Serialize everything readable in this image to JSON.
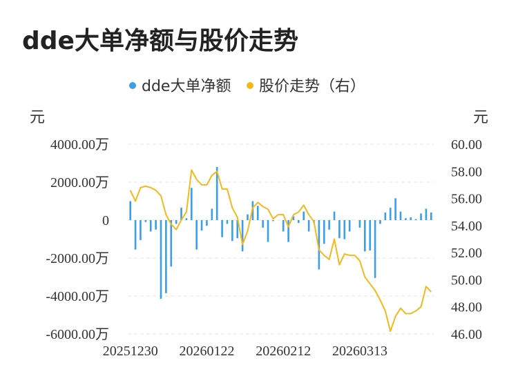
{
  "page": {
    "title": "dde大单净额与股价走势"
  },
  "chart_data": {
    "type": "bar+line",
    "legend": {
      "placement": "top-center",
      "items": [
        {
          "name": "dde大单净额",
          "color": "#3a9ee8"
        },
        {
          "name": "股价走势（右）",
          "color": "#f4b81d"
        }
      ]
    },
    "y_left": {
      "unit": "元",
      "range": [
        -6000,
        4000
      ],
      "ticks": [
        4000,
        2000,
        0,
        -2000,
        -4000,
        -6000
      ],
      "tick_labels": [
        "4000.00万",
        "2000.00万",
        "0",
        "-2000.00万",
        "-4000.00万",
        "-6000.00万"
      ]
    },
    "y_right": {
      "unit": "元",
      "range": [
        46,
        60
      ],
      "ticks": [
        60,
        58,
        56,
        54,
        52,
        50,
        48,
        46
      ],
      "tick_labels": [
        "60.00",
        "58.00",
        "56.00",
        "54.00",
        "52.00",
        "50.00",
        "48.00",
        "46.00"
      ]
    },
    "x_labels": [
      {
        "index": 0,
        "label": "20251230"
      },
      {
        "index": 15,
        "label": "20260122"
      },
      {
        "index": 30,
        "label": "20260212"
      },
      {
        "index": 45,
        "label": "20260313"
      }
    ],
    "grid": "horizontal-dashed",
    "series": [
      {
        "name": "dde大单净额",
        "type": "bar",
        "axis": "left",
        "color": "#3a9ee8",
        "values": [
          1000,
          -1550,
          -1050,
          -100,
          -600,
          -500,
          -4150,
          -3850,
          -2450,
          -200,
          650,
          100,
          1700,
          -1550,
          -550,
          -300,
          600,
          2800,
          -900,
          -200,
          -1100,
          -950,
          -1650,
          300,
          1000,
          750,
          -400,
          -1150,
          -50,
          0,
          -600,
          -1150,
          200,
          -150,
          450,
          -600,
          -150,
          -2600,
          -1250,
          -500,
          450,
          -950,
          -1000,
          -600,
          0,
          -400,
          -1650,
          -1600,
          -3050,
          -200,
          400,
          650,
          1150,
          450,
          100,
          150,
          50,
          350,
          600,
          400
        ],
        "dates": []
      },
      {
        "name": "股价走势（右）",
        "type": "line",
        "axis": "right",
        "color": "#f4b81d",
        "values": [
          56.6,
          55.8,
          56.8,
          56.9,
          56.8,
          56.6,
          56.2,
          54.8,
          54.1,
          53.7,
          54.4,
          55.0,
          58.1,
          57.4,
          57.0,
          57.0,
          57.7,
          58.0,
          56.7,
          56.7,
          55.3,
          54.6,
          52.6,
          53.6,
          55.3,
          55.7,
          55.4,
          55.2,
          54.5,
          54.8,
          54.8,
          53.9,
          54.8,
          55.0,
          55.5,
          54.8,
          54.3,
          52.2,
          51.8,
          51.5,
          53.0,
          51.1,
          51.9,
          51.8,
          51.8,
          51.4,
          50.2,
          49.7,
          49.2,
          48.5,
          47.7,
          46.2,
          47.3,
          47.9,
          47.5,
          47.5,
          47.7,
          48.0,
          49.5,
          49.1
        ]
      }
    ]
  }
}
